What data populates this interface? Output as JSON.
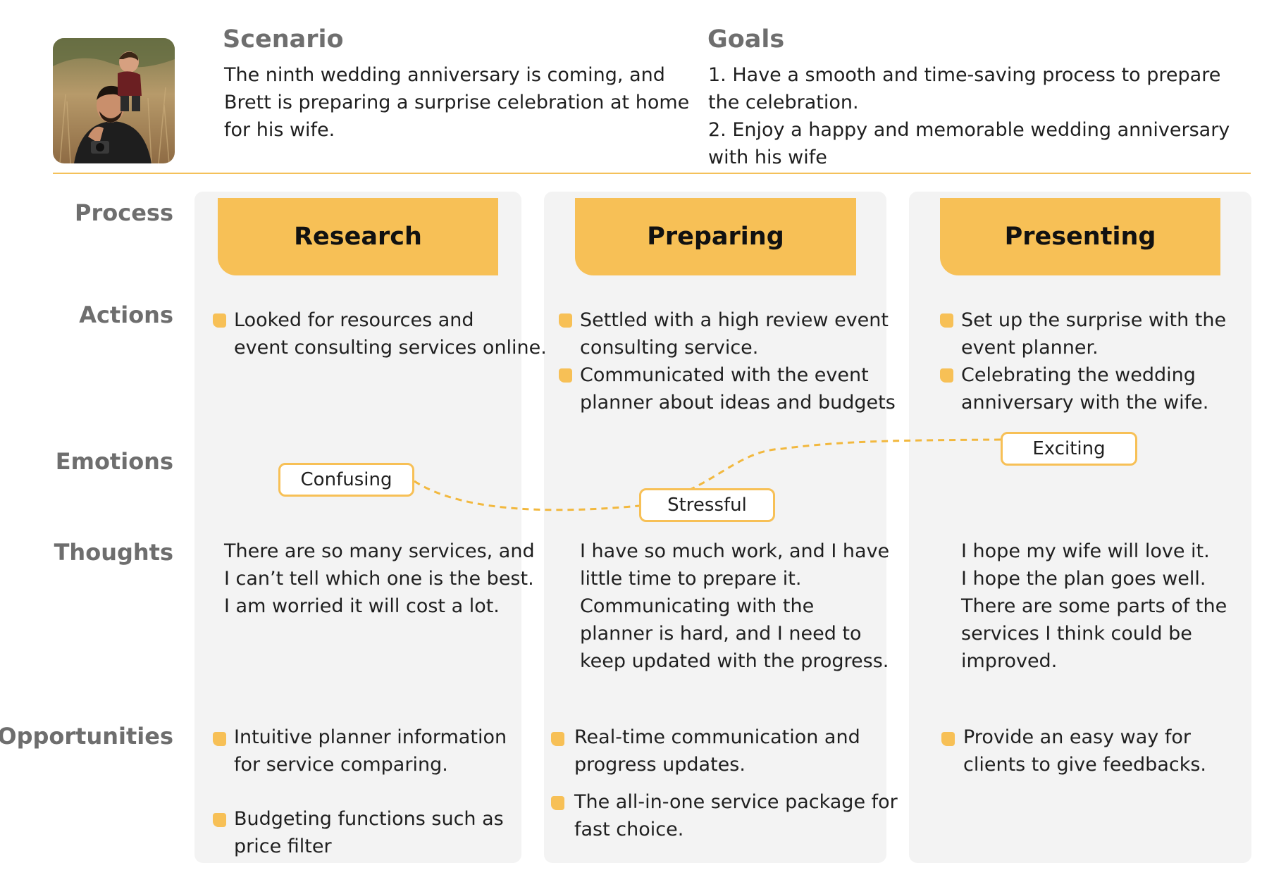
{
  "header": {
    "scenario_title": "Scenario",
    "scenario_lines": [
      "The ninth wedding anniversary is coming, and",
      "Brett is preparing a surprise celebration at home",
      "for his wife."
    ],
    "goals_title": "Goals",
    "goals_lines": [
      "1. Have a smooth and time-saving process to prepare",
      "the celebration.",
      "2. Enjoy a happy and memorable wedding anniversary",
      "with his wife"
    ]
  },
  "rows": {
    "process": "Process",
    "actions": "Actions",
    "emotions": "Emotions",
    "thoughts": "Thoughts",
    "opportunities": "Opportunities"
  },
  "stages": [
    {
      "name": "Research",
      "actions": [
        [
          "Looked for resources and",
          "event consulting services online."
        ]
      ],
      "emotion": "Confusing",
      "thoughts": [
        "There are so many services, and",
        "I can’t tell which one is the best.",
        "I am worried it will cost a lot."
      ],
      "opportunities": [
        [
          "Intuitive planner information",
          "for service comparing."
        ],
        [
          "Budgeting functions such as",
          "price filter"
        ]
      ]
    },
    {
      "name": "Preparing",
      "actions": [
        [
          "Settled with a high review event",
          "consulting service."
        ],
        [
          "Communicated with the event",
          "planner about ideas and budgets"
        ]
      ],
      "emotion": "Stressful",
      "thoughts": [
        "I have so much work, and I have",
        "little time to prepare it.",
        "Communicating with the",
        "planner is hard, and I need to",
        "keep updated with the progress."
      ],
      "opportunities": [
        [
          "Real-time communication and",
          "progress updates."
        ],
        [
          "The all-in-one service package for",
          "fast choice."
        ]
      ]
    },
    {
      "name": "Presenting",
      "actions": [
        [
          "Set up the surprise with the",
          "event planner."
        ],
        [
          "Celebrating the wedding",
          "anniversary with the wife."
        ]
      ],
      "emotion": "Exciting",
      "thoughts": [
        "I hope my wife will love it.",
        "I hope the plan goes well.",
        "There are some parts of the",
        "services I think could be",
        "improved."
      ],
      "opportunities": [
        [
          "Provide an easy way for",
          "clients to give feedbacks."
        ]
      ]
    }
  ],
  "colors": {
    "accent": "#f7c056",
    "panel": "#f3f3f3",
    "label": "#6e6e6e"
  },
  "icons": [
    "person-photo",
    "bullet-square-icon"
  ]
}
